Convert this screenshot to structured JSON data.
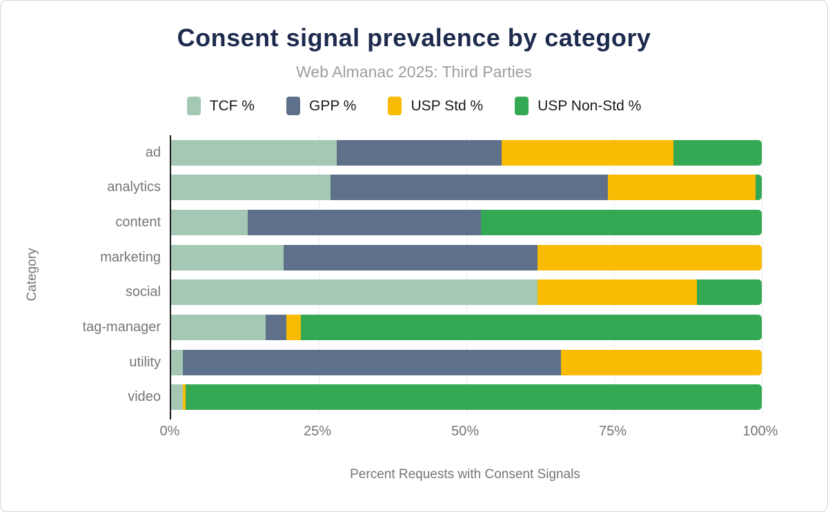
{
  "title": "Consent signal prevalence by category",
  "subtitle": "Web Almanac 2025: Third Parties",
  "chart_data": {
    "type": "bar",
    "orientation": "horizontal",
    "stacked": true,
    "title": "Consent signal prevalence by category",
    "subtitle": "Web Almanac 2025: Third Parties",
    "categories": [
      "ad",
      "analytics",
      "content",
      "marketing",
      "social",
      "tag-manager",
      "utility",
      "video"
    ],
    "series": [
      {
        "name": "TCF %",
        "color": "#a5c8b4",
        "values": [
          28,
          27,
          13,
          19,
          62,
          16,
          2,
          2
        ]
      },
      {
        "name": "GPP %",
        "color": "#5f718a",
        "values": [
          28,
          47,
          39.5,
          43,
          0,
          3.5,
          64,
          0
        ]
      },
      {
        "name": "USP Std %",
        "color": "#f9bc02",
        "values": [
          29,
          25,
          0,
          38,
          27,
          2.5,
          34,
          0.5
        ]
      },
      {
        "name": "USP Non-Std %",
        "color": "#34a853",
        "values": [
          15,
          1,
          47.5,
          0,
          11,
          78,
          0,
          97.5
        ]
      }
    ],
    "xlabel": "Percent Requests with Consent Signals",
    "ylabel": "Category",
    "x_ticks": [
      "0%",
      "25%",
      "50%",
      "75%",
      "100%"
    ],
    "xlim": [
      0,
      100
    ],
    "legend_position": "top",
    "grid": true
  },
  "colors": {
    "title_text": "#1e2b4e",
    "subtitle_text": "#9e9e9e",
    "axis_text": "#757575",
    "legend_text": "#1a1a1a",
    "axis_line": "#1a1a1a",
    "gridline": "#ececec",
    "card_border": "#d6d6d6"
  }
}
